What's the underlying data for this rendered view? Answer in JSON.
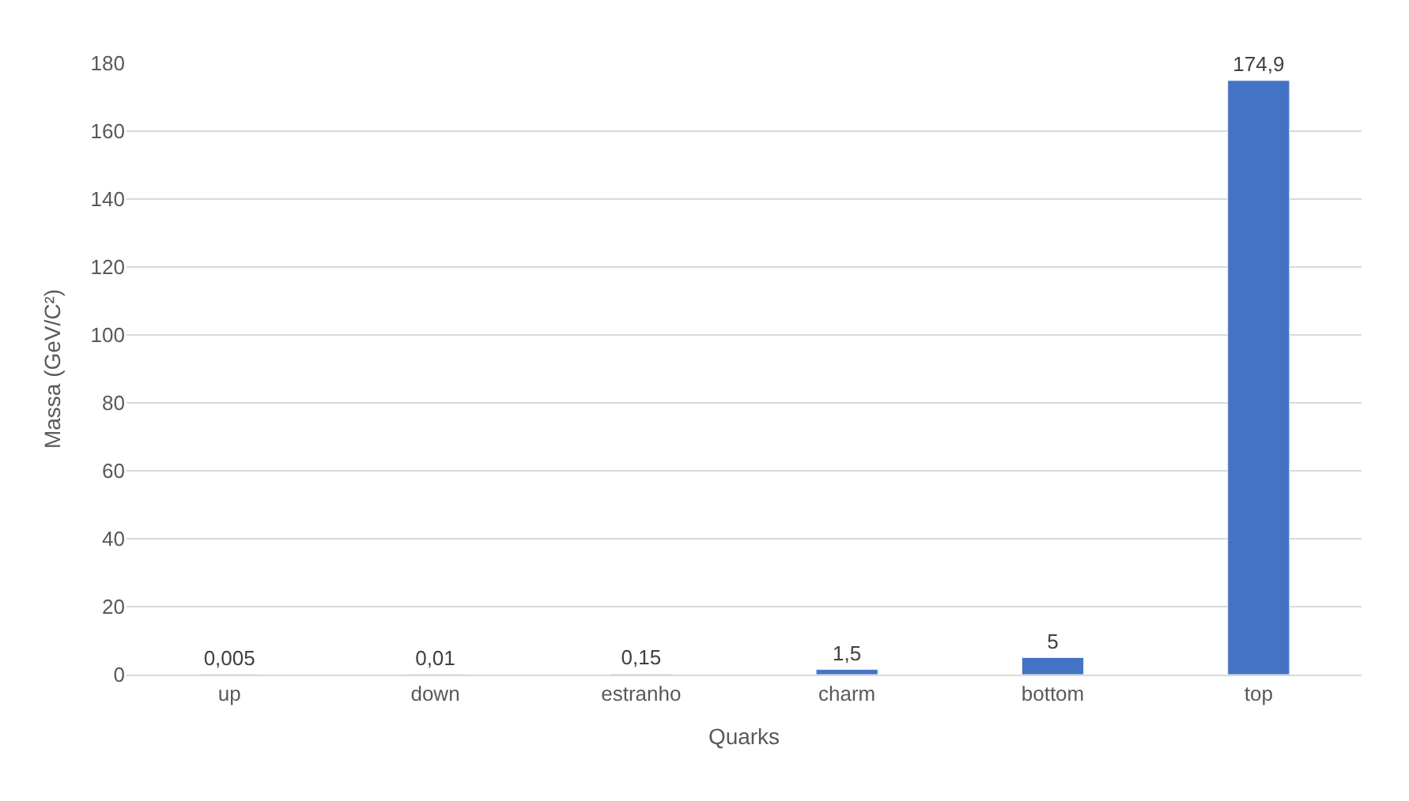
{
  "chart_data": {
    "type": "bar",
    "xlabel": "Quarks",
    "ylabel": "Massa (GeV/C²)",
    "categories": [
      "up",
      "down",
      "estranho",
      "charm",
      "bottom",
      "top"
    ],
    "values": [
      0.005,
      0.01,
      0.15,
      1.5,
      5,
      174.9
    ],
    "value_labels": [
      "0,005",
      "0,01",
      "0,15",
      "1,5",
      "5",
      "174,9"
    ],
    "color": "#4472c4",
    "ylim": [
      0,
      180
    ],
    "yticks": [
      0,
      20,
      40,
      60,
      80,
      100,
      120,
      140,
      160,
      180
    ],
    "grid": "y"
  }
}
